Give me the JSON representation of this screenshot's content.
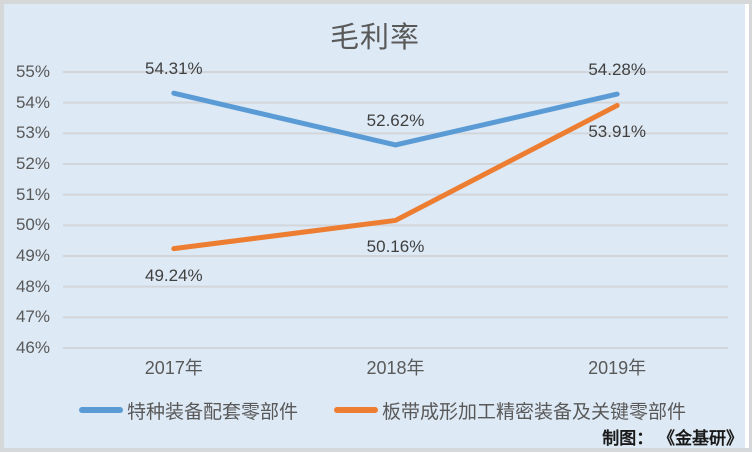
{
  "title": "毛利率",
  "footer": "制图：  《金基研》",
  "chart_data": {
    "type": "line",
    "title": "毛利率",
    "categories": [
      "2017年",
      "2018年",
      "2019年"
    ],
    "series": [
      {
        "name": "特种装备配套零部件",
        "color": "#5b9bd5",
        "values": [
          54.31,
          52.62,
          54.28
        ],
        "point_labels": [
          "54.31%",
          "52.62%",
          "54.28%"
        ],
        "label_position": "above"
      },
      {
        "name": "板带成形加工精密装备及关键零部件",
        "color": "#ed7d31",
        "values": [
          49.24,
          50.16,
          53.91
        ],
        "point_labels": [
          "49.24%",
          "50.16%",
          "53.91%"
        ],
        "label_position": "below"
      }
    ],
    "y_axis": {
      "min": 46,
      "max": 55,
      "step": 1,
      "tick_labels": [
        "46%",
        "47%",
        "48%",
        "49%",
        "50%",
        "51%",
        "52%",
        "53%",
        "54%",
        "55%"
      ]
    },
    "x_axis_label": "",
    "ylabel": "",
    "grid": true,
    "legend_position": "bottom",
    "plot_background": "#dde9f5",
    "gridline_color": "#d2d6da"
  }
}
